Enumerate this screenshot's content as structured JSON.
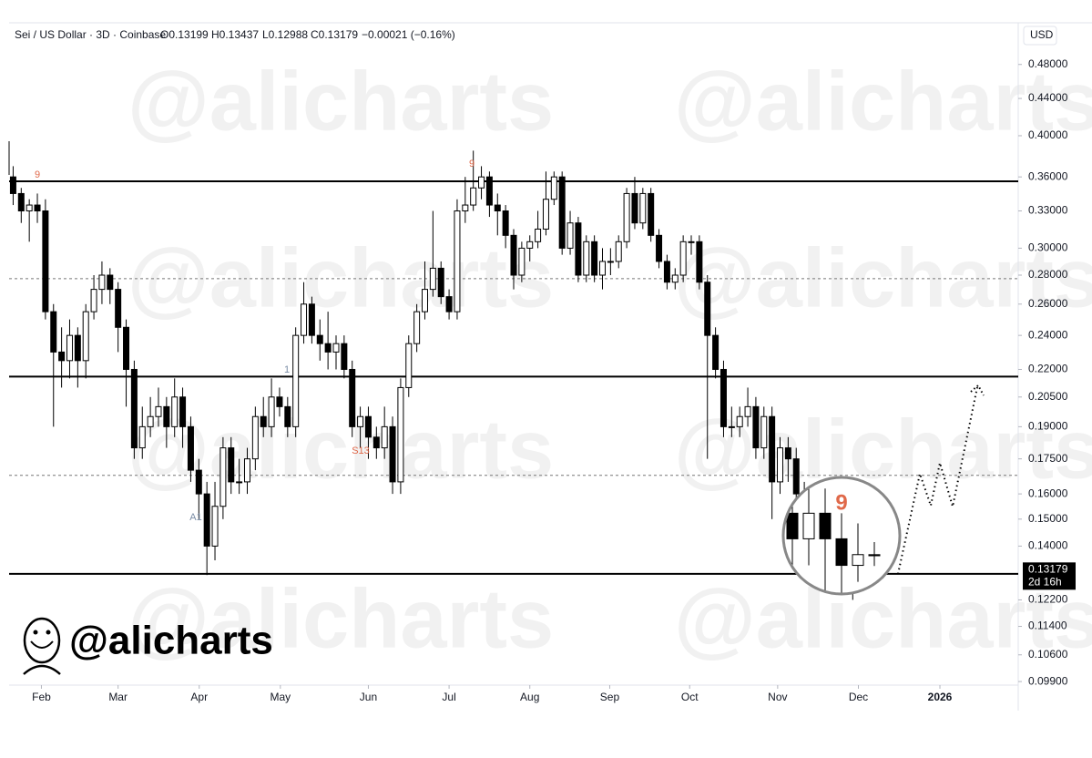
{
  "chart_data": {
    "type": "candlestick",
    "header": {
      "title": "Sei / US Dollar · 3D · Coinbase",
      "open": "O0.13199",
      "high": "H0.13437",
      "low": "L0.12988",
      "close": "C0.13179",
      "change": "−0.00021 (−0.16%)"
    },
    "currency": "USD",
    "brand": "@alicharts",
    "countdown": "2d 16h",
    "price_tag": {
      "value": 0.13179,
      "label": "0.13179"
    },
    "log_scale": true,
    "up_color": "#ffffff",
    "down_color": "#000000",
    "xlim": [
      -0.5,
      124.5
    ],
    "xticks": [
      {
        "value": 3.5,
        "label": "Feb"
      },
      {
        "value": 13.0,
        "label": "Mar"
      },
      {
        "value": 23.05,
        "label": "Apr"
      },
      {
        "value": 33.1,
        "label": "May"
      },
      {
        "value": 44.0,
        "label": "Jun"
      },
      {
        "value": 54.0,
        "label": "Jul"
      },
      {
        "value": 64.0,
        "label": "Aug"
      },
      {
        "value": 73.9,
        "label": "Sep"
      },
      {
        "value": 83.8,
        "label": "Oct"
      },
      {
        "value": 94.7,
        "label": "Nov"
      },
      {
        "value": 104.7,
        "label": "Dec"
      },
      {
        "value": 114.8,
        "label": "2026"
      }
    ],
    "ylim": [
      0.0981,
      0.534
    ],
    "yticks": [
      {
        "value": 0.48,
        "label": "0.48000"
      },
      {
        "value": 0.44,
        "label": "0.44000"
      },
      {
        "value": 0.4,
        "label": "0.40000"
      },
      {
        "value": 0.36,
        "label": "0.36000"
      },
      {
        "value": 0.33,
        "label": "0.33000"
      },
      {
        "value": 0.3,
        "label": "0.30000"
      },
      {
        "value": 0.28,
        "label": "0.28000"
      },
      {
        "value": 0.26,
        "label": "0.26000"
      },
      {
        "value": 0.24,
        "label": "0.24000"
      },
      {
        "value": 0.22,
        "label": "0.22000"
      },
      {
        "value": 0.205,
        "label": "0.20500"
      },
      {
        "value": 0.19,
        "label": "0.19000"
      },
      {
        "value": 0.175,
        "label": "0.17500"
      },
      {
        "value": 0.16,
        "label": "0.16000"
      },
      {
        "value": 0.15,
        "label": "0.15000"
      },
      {
        "value": 0.14,
        "label": "0.14000"
      },
      {
        "value": 0.122,
        "label": "0.12200"
      },
      {
        "value": 0.114,
        "label": "0.11400"
      },
      {
        "value": 0.106,
        "label": "0.10600"
      },
      {
        "value": 0.099,
        "label": "0.09900"
      }
    ],
    "levels": [
      {
        "value": 0.356,
        "style": "solid"
      },
      {
        "value": 0.2775,
        "style": "dashed"
      },
      {
        "value": 0.216,
        "style": "solid"
      },
      {
        "value": 0.1678,
        "style": "dashed"
      },
      {
        "value": 0.1304,
        "style": "solid"
      }
    ],
    "annotations": [
      "9",
      "9",
      "1",
      "S13",
      "A1",
      "9"
    ],
    "open": [
      0.36,
      0.345,
      0.33,
      0.335,
      0.33,
      0.255,
      0.23,
      0.225,
      0.24,
      0.225,
      0.255,
      0.27,
      0.28,
      0.27,
      0.245,
      0.22,
      0.18,
      0.19,
      0.195,
      0.2,
      0.19,
      0.205,
      0.19,
      0.17,
      0.16,
      0.14,
      0.155,
      0.18,
      0.165,
      0.165,
      0.175,
      0.195,
      0.19,
      0.205,
      0.2,
      0.19,
      0.24,
      0.26,
      0.24,
      0.235,
      0.23,
      0.235,
      0.22,
      0.19,
      0.195,
      0.185,
      0.18,
      0.19,
      0.165,
      0.21,
      0.235,
      0.255,
      0.27,
      0.285,
      0.265,
      0.255,
      0.33,
      0.335,
      0.35,
      0.36,
      0.335,
      0.33,
      0.31,
      0.28,
      0.3,
      0.305,
      0.315,
      0.34,
      0.36,
      0.3,
      0.32,
      0.28,
      0.305,
      0.28,
      0.29,
      0.29,
      0.305,
      0.345,
      0.32,
      0.345,
      0.31,
      0.29,
      0.275,
      0.28,
      0.305,
      0.305,
      0.275,
      0.24,
      0.22,
      0.19,
      0.19,
      0.195,
      0.2,
      0.18,
      0.195,
      0.165,
      0.18,
      0.175,
      0.16,
      0.15,
      0.145,
      0.14,
      0.135,
      0.14,
      0.135,
      0.13,
      0.13199
    ],
    "high": [
      0.37,
      0.35,
      0.34,
      0.345,
      0.34,
      0.26,
      0.245,
      0.25,
      0.245,
      0.26,
      0.28,
      0.29,
      0.285,
      0.275,
      0.25,
      0.225,
      0.2,
      0.205,
      0.21,
      0.205,
      0.215,
      0.21,
      0.195,
      0.175,
      0.165,
      0.165,
      0.185,
      0.185,
      0.175,
      0.18,
      0.2,
      0.205,
      0.215,
      0.21,
      0.205,
      0.245,
      0.275,
      0.265,
      0.25,
      0.255,
      0.24,
      0.24,
      0.225,
      0.2,
      0.2,
      0.19,
      0.2,
      0.195,
      0.215,
      0.24,
      0.26,
      0.29,
      0.33,
      0.29,
      0.27,
      0.34,
      0.36,
      0.385,
      0.37,
      0.365,
      0.345,
      0.335,
      0.315,
      0.305,
      0.31,
      0.33,
      0.365,
      0.365,
      0.365,
      0.33,
      0.325,
      0.31,
      0.31,
      0.3,
      0.3,
      0.31,
      0.35,
      0.36,
      0.35,
      0.35,
      0.315,
      0.295,
      0.285,
      0.31,
      0.31,
      0.31,
      0.28,
      0.245,
      0.225,
      0.2,
      0.2,
      0.21,
      0.205,
      0.2,
      0.2,
      0.185,
      0.185,
      0.18,
      0.165,
      0.155,
      0.15,
      0.145,
      0.145,
      0.145,
      0.14,
      0.138,
      0.13437
    ],
    "low": [
      0.335,
      0.32,
      0.305,
      0.32,
      0.25,
      0.19,
      0.21,
      0.215,
      0.21,
      0.215,
      0.25,
      0.26,
      0.26,
      0.23,
      0.2,
      0.175,
      0.175,
      0.185,
      0.19,
      0.18,
      0.185,
      0.18,
      0.165,
      0.15,
      0.13,
      0.135,
      0.15,
      0.16,
      0.16,
      0.16,
      0.17,
      0.185,
      0.185,
      0.195,
      0.185,
      0.185,
      0.235,
      0.235,
      0.225,
      0.22,
      0.22,
      0.215,
      0.185,
      0.18,
      0.175,
      0.175,
      0.175,
      0.16,
      0.16,
      0.205,
      0.23,
      0.25,
      0.265,
      0.26,
      0.25,
      0.25,
      0.32,
      0.33,
      0.34,
      0.325,
      0.31,
      0.3,
      0.27,
      0.275,
      0.29,
      0.3,
      0.31,
      0.335,
      0.295,
      0.295,
      0.275,
      0.275,
      0.275,
      0.27,
      0.28,
      0.285,
      0.3,
      0.315,
      0.315,
      0.305,
      0.285,
      0.27,
      0.27,
      0.275,
      0.295,
      0.27,
      0.175,
      0.215,
      0.185,
      0.185,
      0.185,
      0.19,
      0.175,
      0.175,
      0.15,
      0.16,
      0.165,
      0.155,
      0.145,
      0.14,
      0.135,
      0.13,
      0.13,
      0.125,
      0.122,
      0.127,
      0.12988
    ],
    "close": [
      0.345,
      0.33,
      0.335,
      0.33,
      0.255,
      0.23,
      0.225,
      0.24,
      0.225,
      0.255,
      0.27,
      0.28,
      0.27,
      0.245,
      0.22,
      0.18,
      0.19,
      0.195,
      0.2,
      0.19,
      0.205,
      0.19,
      0.17,
      0.16,
      0.14,
      0.155,
      0.18,
      0.165,
      0.165,
      0.175,
      0.195,
      0.19,
      0.205,
      0.2,
      0.19,
      0.24,
      0.26,
      0.24,
      0.235,
      0.23,
      0.235,
      0.22,
      0.19,
      0.195,
      0.185,
      0.18,
      0.19,
      0.165,
      0.21,
      0.235,
      0.255,
      0.27,
      0.285,
      0.265,
      0.255,
      0.33,
      0.335,
      0.35,
      0.36,
      0.335,
      0.33,
      0.31,
      0.28,
      0.3,
      0.305,
      0.315,
      0.34,
      0.36,
      0.3,
      0.32,
      0.28,
      0.305,
      0.28,
      0.29,
      0.29,
      0.305,
      0.345,
      0.32,
      0.345,
      0.31,
      0.29,
      0.275,
      0.28,
      0.305,
      0.305,
      0.275,
      0.24,
      0.22,
      0.19,
      0.19,
      0.195,
      0.2,
      0.18,
      0.195,
      0.165,
      0.18,
      0.175,
      0.16,
      0.15,
      0.145,
      0.14,
      0.135,
      0.14,
      0.135,
      0.13,
      0.132,
      0.13179
    ]
  }
}
